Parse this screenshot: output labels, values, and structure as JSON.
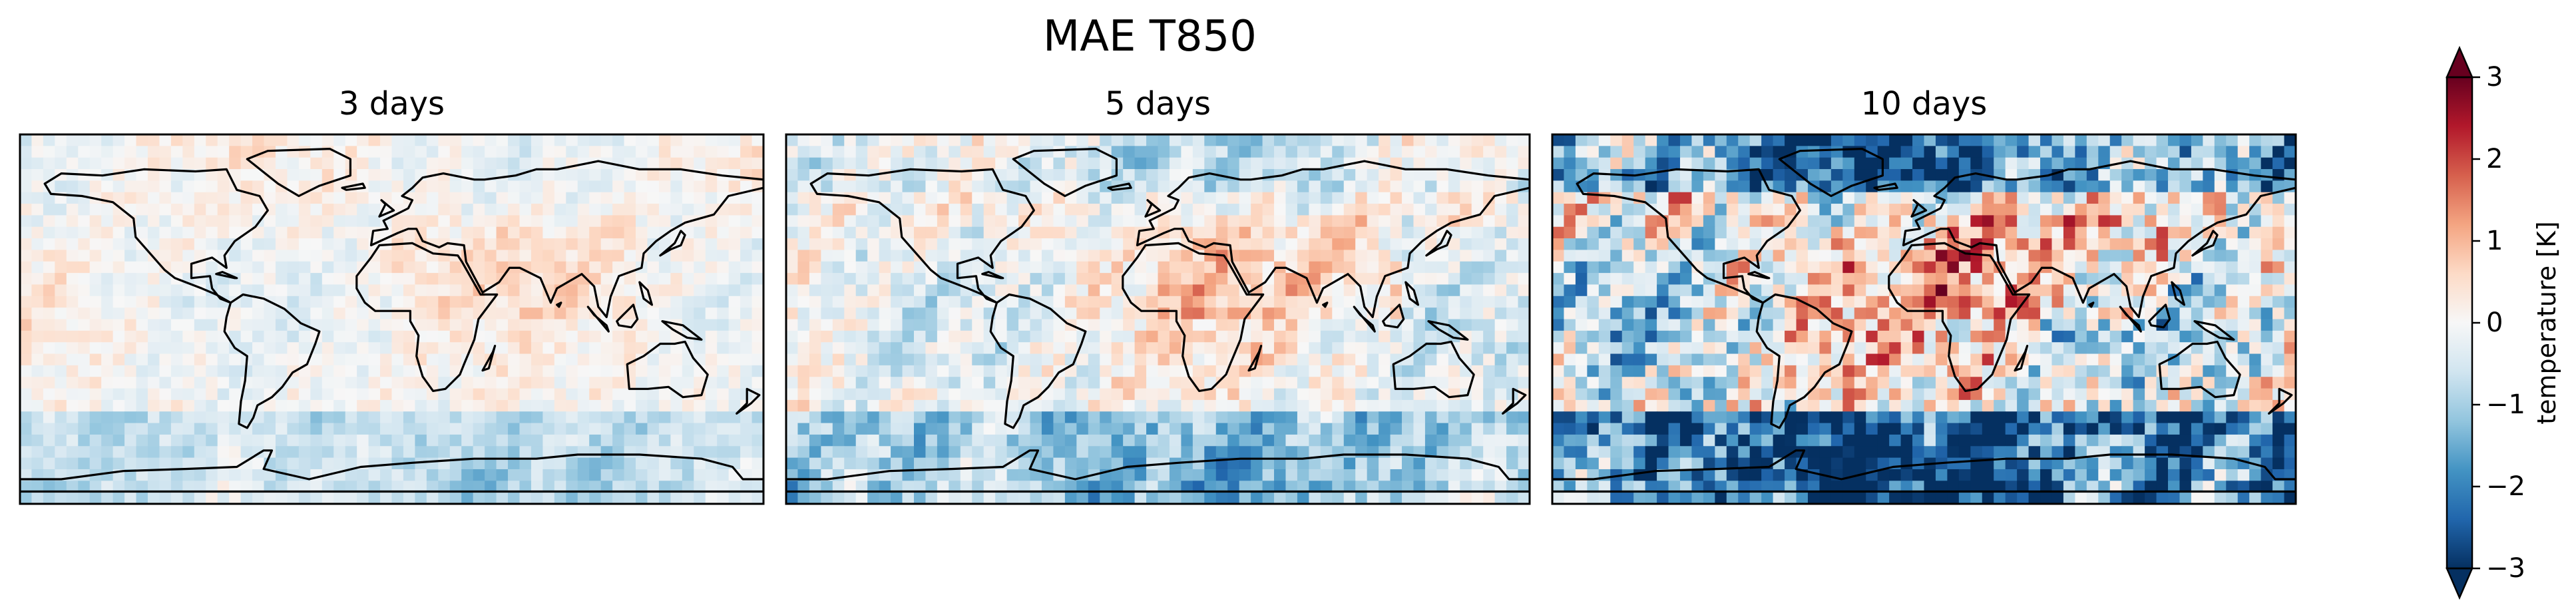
{
  "chart_data": {
    "type": "heatmap",
    "title": "MAE T850",
    "panels": [
      {
        "title": "3 days",
        "amplitude": 0.55
      },
      {
        "title": "5 days",
        "amplitude": 0.9
      },
      {
        "title": "10 days",
        "amplitude": 1.9
      }
    ],
    "colorbar": {
      "label": "temperature [K]",
      "range": [
        -3,
        3
      ],
      "ticks": [
        "3",
        "2",
        "1",
        "0",
        "−1",
        "−2",
        "−3"
      ],
      "extend": "both",
      "colormap": "RdBu_r",
      "colors": [
        "#053061",
        "#2166ac",
        "#4393c3",
        "#92c5de",
        "#d1e5f0",
        "#f7f7f7",
        "#fddbc7",
        "#f4a582",
        "#d6604d",
        "#b2182b",
        "#67001f"
      ]
    },
    "grid_cells": {
      "lon": 64,
      "lat": 32
    }
  }
}
